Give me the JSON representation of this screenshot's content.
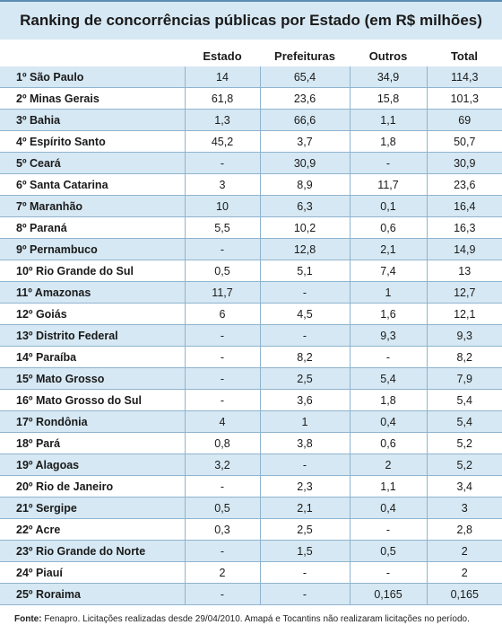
{
  "chart_data": {
    "type": "table",
    "title": "Ranking de concorrências públicas por Estado (em R$ milhões)",
    "columns": [
      "",
      "Estado",
      "Prefeituras",
      "Outros",
      "Total"
    ],
    "rows": [
      [
        "1º São Paulo",
        "14",
        "65,4",
        "34,9",
        "114,3"
      ],
      [
        "2º Minas Gerais",
        "61,8",
        "23,6",
        "15,8",
        "101,3"
      ],
      [
        "3º Bahia",
        "1,3",
        "66,6",
        "1,1",
        "69"
      ],
      [
        "4º Espírito Santo",
        "45,2",
        "3,7",
        "1,8",
        "50,7"
      ],
      [
        "5º Ceará",
        "-",
        "30,9",
        "-",
        "30,9"
      ],
      [
        "6º Santa Catarina",
        "3",
        "8,9",
        "11,7",
        "23,6"
      ],
      [
        "7º Maranhão",
        "10",
        "6,3",
        "0,1",
        "16,4"
      ],
      [
        "8º Paraná",
        "5,5",
        "10,2",
        "0,6",
        "16,3"
      ],
      [
        "9º Pernambuco",
        "-",
        "12,8",
        "2,1",
        "14,9"
      ],
      [
        "10º Rio Grande do Sul",
        "0,5",
        "5,1",
        "7,4",
        "13"
      ],
      [
        "11º Amazonas",
        "11,7",
        "-",
        "1",
        "12,7"
      ],
      [
        "12º Goiás",
        "6",
        "4,5",
        "1,6",
        "12,1"
      ],
      [
        "13º Distrito Federal",
        "-",
        "-",
        "9,3",
        "9,3"
      ],
      [
        "14º Paraíba",
        "-",
        "8,2",
        "-",
        "8,2"
      ],
      [
        "15º Mato Grosso",
        "-",
        "2,5",
        "5,4",
        "7,9"
      ],
      [
        "16º Mato Grosso do Sul",
        "-",
        "3,6",
        "1,8",
        "5,4"
      ],
      [
        "17º Rondônia",
        "4",
        "1",
        "0,4",
        "5,4"
      ],
      [
        "18º Pará",
        "0,8",
        "3,8",
        "0,6",
        "5,2"
      ],
      [
        "19º Alagoas",
        "3,2",
        "-",
        "2",
        "5,2"
      ],
      [
        "20º Rio de Janeiro",
        "-",
        "2,3",
        "1,1",
        "3,4"
      ],
      [
        "21º Sergipe",
        "0,5",
        "2,1",
        "0,4",
        "3"
      ],
      [
        "22º Acre",
        "0,3",
        "2,5",
        "-",
        "2,8"
      ],
      [
        "23º Rio Grande do Norte",
        "-",
        "1,5",
        "0,5",
        "2"
      ],
      [
        "24º Piauí",
        "2",
        "-",
        "-",
        "2"
      ],
      [
        "25º Roraima",
        "-",
        "-",
        "0,165",
        "0,165"
      ]
    ],
    "source_label": "Fonte:",
    "source_text": " Fenapro. Licitações realizadas desde 29/04/2010. Amapá e Tocantins não realizaram licitações no período."
  },
  "colors": {
    "band": "#d6e8f3",
    "rule": "#8fb4cf",
    "title_border": "#5b8db3"
  }
}
